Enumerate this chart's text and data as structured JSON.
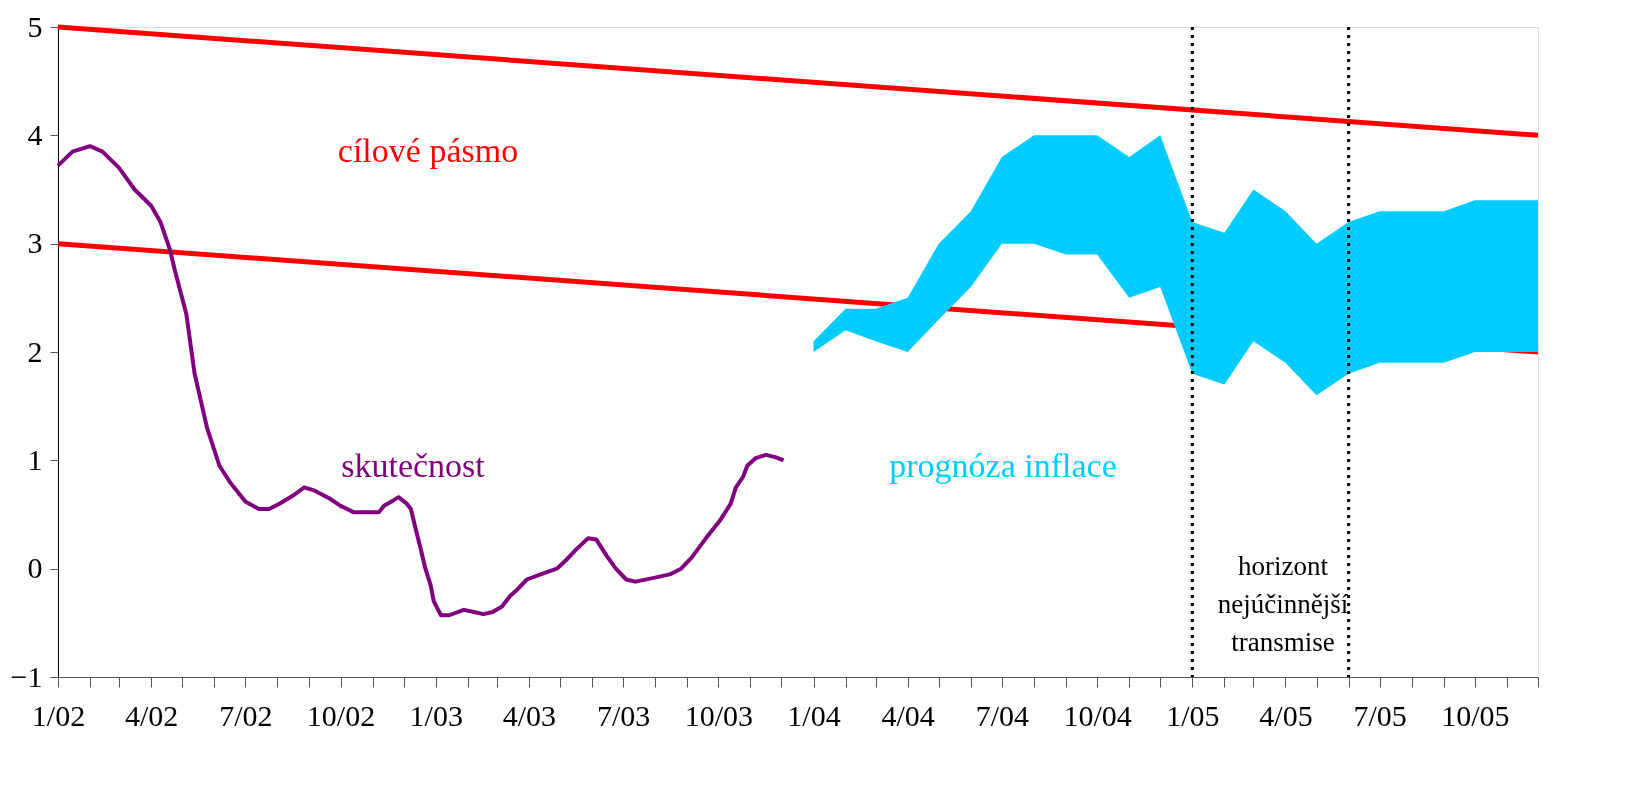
{
  "chart_data": {
    "type": "line",
    "xlim": [
      "2002-01",
      "2005-12"
    ],
    "ylim": [
      -1,
      5
    ],
    "yticks": [
      -1,
      0,
      1,
      2,
      3,
      4,
      5
    ],
    "xticks": [
      {
        "value": "2002-01",
        "label": "1/02"
      },
      {
        "value": "2002-02",
        "label": null
      },
      {
        "value": "2002-03",
        "label": null
      },
      {
        "value": "2002-04",
        "label": "4/02"
      },
      {
        "value": "2002-05",
        "label": null
      },
      {
        "value": "2002-06",
        "label": null
      },
      {
        "value": "2002-07",
        "label": "7/02"
      },
      {
        "value": "2002-08",
        "label": null
      },
      {
        "value": "2002-09",
        "label": null
      },
      {
        "value": "2002-10",
        "label": "10/02"
      },
      {
        "value": "2002-11",
        "label": null
      },
      {
        "value": "2002-12",
        "label": null
      },
      {
        "value": "2003-01",
        "label": "1/03"
      },
      {
        "value": "2003-02",
        "label": null
      },
      {
        "value": "2003-03",
        "label": null
      },
      {
        "value": "2003-04",
        "label": "4/03"
      },
      {
        "value": "2003-05",
        "label": null
      },
      {
        "value": "2003-06",
        "label": null
      },
      {
        "value": "2003-07",
        "label": "7/03"
      },
      {
        "value": "2003-08",
        "label": null
      },
      {
        "value": "2003-09",
        "label": null
      },
      {
        "value": "2003-10",
        "label": "10/03"
      },
      {
        "value": "2003-11",
        "label": null
      },
      {
        "value": "2003-12",
        "label": null
      },
      {
        "value": "2004-01",
        "label": "1/04"
      },
      {
        "value": "2004-02",
        "label": null
      },
      {
        "value": "2004-03",
        "label": null
      },
      {
        "value": "2004-04",
        "label": "4/04"
      },
      {
        "value": "2004-05",
        "label": null
      },
      {
        "value": "2004-06",
        "label": null
      },
      {
        "value": "2004-07",
        "label": "7/04"
      },
      {
        "value": "2004-08",
        "label": null
      },
      {
        "value": "2004-09",
        "label": null
      },
      {
        "value": "2004-10",
        "label": "10/04"
      },
      {
        "value": "2004-11",
        "label": null
      },
      {
        "value": "2004-12",
        "label": null
      },
      {
        "value": "2005-01",
        "label": "1/05"
      },
      {
        "value": "2005-02",
        "label": null
      },
      {
        "value": "2005-03",
        "label": null
      },
      {
        "value": "2005-04",
        "label": "4/05"
      },
      {
        "value": "2005-05",
        "label": null
      },
      {
        "value": "2005-06",
        "label": null
      },
      {
        "value": "2005-07",
        "label": "7/05"
      },
      {
        "value": "2005-08",
        "label": null
      },
      {
        "value": "2005-09",
        "label": null
      },
      {
        "value": "2005-10",
        "label": "10/05"
      },
      {
        "value": "2005-11",
        "label": null
      },
      {
        "value": "2005-12",
        "label": null
      }
    ],
    "grid": false,
    "series": [
      {
        "name": "cílové pásmo",
        "color": "#ff0000",
        "x": [
          "2002-01",
          "2005-12"
        ],
        "values": [
          5,
          4
        ]
      },
      {
        "color": "#ff0000",
        "x": [
          "2002-01",
          "2005-12"
        ],
        "values": [
          3,
          2
        ]
      },
      {
        "name": "skutečnost",
        "color": "#800080",
        "x": [
          "2002-01-01",
          "2002-01-15",
          "2002-02-01",
          "2002-02-13",
          "2002-03-01",
          "2002-03-16",
          "2002-04-01",
          "2002-04-10",
          "2002-04-19",
          "2002-04-24",
          "2002-05-05",
          "2002-05-13",
          "2002-05-25",
          "2002-06-06",
          "2002-06-16",
          "2002-07-01",
          "2002-07-14",
          "2002-07-24",
          "2002-08-03",
          "2002-08-17",
          "2002-08-27",
          "2002-09-06",
          "2002-09-20",
          "2002-10-01",
          "2002-10-14",
          "2002-10-28",
          "2002-11-07",
          "2002-11-12",
          "2002-11-21",
          "2002-11-26",
          "2002-12-04",
          "2002-12-08",
          "2002-12-13",
          "2002-12-17",
          "2002-12-22",
          "2002-12-27",
          "2002-12-30",
          "2003-01-06",
          "2003-01-14",
          "2003-01-28",
          "2003-02-07",
          "2003-02-16",
          "2003-02-25",
          "2003-03-06",
          "2003-03-14",
          "2003-03-20",
          "2003-03-30",
          "2003-04-13",
          "2003-04-28",
          "2003-05-07",
          "2003-05-17",
          "2003-05-28",
          "2003-06-05",
          "2003-06-15",
          "2003-06-24",
          "2003-07-04",
          "2003-07-13",
          "2003-08-02",
          "2003-08-16",
          "2003-08-26",
          "2003-09-05",
          "2003-09-19",
          "2003-10-03",
          "2003-10-13",
          "2003-10-18",
          "2003-10-25",
          "2003-10-29",
          "2003-11-06",
          "2003-11-16",
          "2003-11-25",
          "2003-12-03"
        ],
        "values": [
          3.72,
          3.85,
          3.9,
          3.85,
          3.7,
          3.5,
          3.35,
          3.2,
          2.95,
          2.75,
          2.35,
          1.8,
          1.3,
          0.95,
          0.8,
          0.62,
          0.55,
          0.55,
          0.6,
          0.68,
          0.75,
          0.72,
          0.65,
          0.58,
          0.52,
          0.52,
          0.52,
          0.58,
          0.63,
          0.66,
          0.6,
          0.55,
          0.35,
          0.2,
          0,
          -0.15,
          -0.3,
          -0.43,
          -0.43,
          -0.38,
          -0.4,
          -0.42,
          -0.4,
          -0.35,
          -0.25,
          -0.2,
          -0.1,
          -0.05,
          0,
          0.08,
          0.18,
          0.28,
          0.27,
          0.12,
          0,
          -0.1,
          -0.12,
          -0.08,
          -0.05,
          0,
          0.1,
          0.28,
          0.45,
          0.6,
          0.75,
          0.85,
          0.95,
          1.02,
          1.05,
          1.03,
          1.0
        ]
      },
      {
        "name": "prognóza inflace",
        "type": "area",
        "color": "#00ccff",
        "x": [
          "2004-01",
          "2004-02",
          "2004-03",
          "2004-04",
          "2004-05",
          "2004-06",
          "2004-07",
          "2004-08",
          "2004-09",
          "2004-10",
          "2004-11",
          "2004-12",
          "2005-01",
          "2005-02",
          "2005-03",
          "2005-04",
          "2005-05",
          "2005-06",
          "2005-07",
          "2005-08",
          "2005-09",
          "2005-10",
          "2005-11",
          "2005-12"
        ],
        "values": [
          null,
          null,
          null,
          null,
          null,
          null,
          null,
          null,
          null,
          null,
          null,
          null,
          null,
          null,
          null,
          null,
          null,
          null,
          null,
          null,
          null,
          null,
          null,
          null
        ],
        "lower": [
          2.0,
          2.2,
          2.1,
          2.0,
          2.3,
          2.6,
          3.0,
          3.0,
          2.9,
          2.9,
          2.5,
          2.6,
          1.8,
          1.7,
          2.1,
          1.9,
          1.6,
          1.8,
          1.9,
          1.9,
          1.9,
          2.0,
          2.0,
          2.0
        ],
        "upper": [
          2.1,
          2.4,
          2.4,
          2.5,
          3.0,
          3.3,
          3.8,
          4.0,
          4.0,
          4.0,
          3.8,
          4.0,
          3.2,
          3.1,
          3.5,
          3.3,
          3.0,
          3.2,
          3.3,
          3.3,
          3.3,
          3.4,
          3.4,
          3.4
        ]
      }
    ],
    "ref_lines": [
      {
        "axis": "x",
        "value": "2005-01",
        "color": "#000000",
        "line_style": "dotted"
      },
      {
        "axis": "x",
        "value": "2005-06",
        "color": "#000000",
        "line_style": "dotted"
      }
    ],
    "annotations": [
      "horizont nejúčinnější transmise"
    ]
  }
}
